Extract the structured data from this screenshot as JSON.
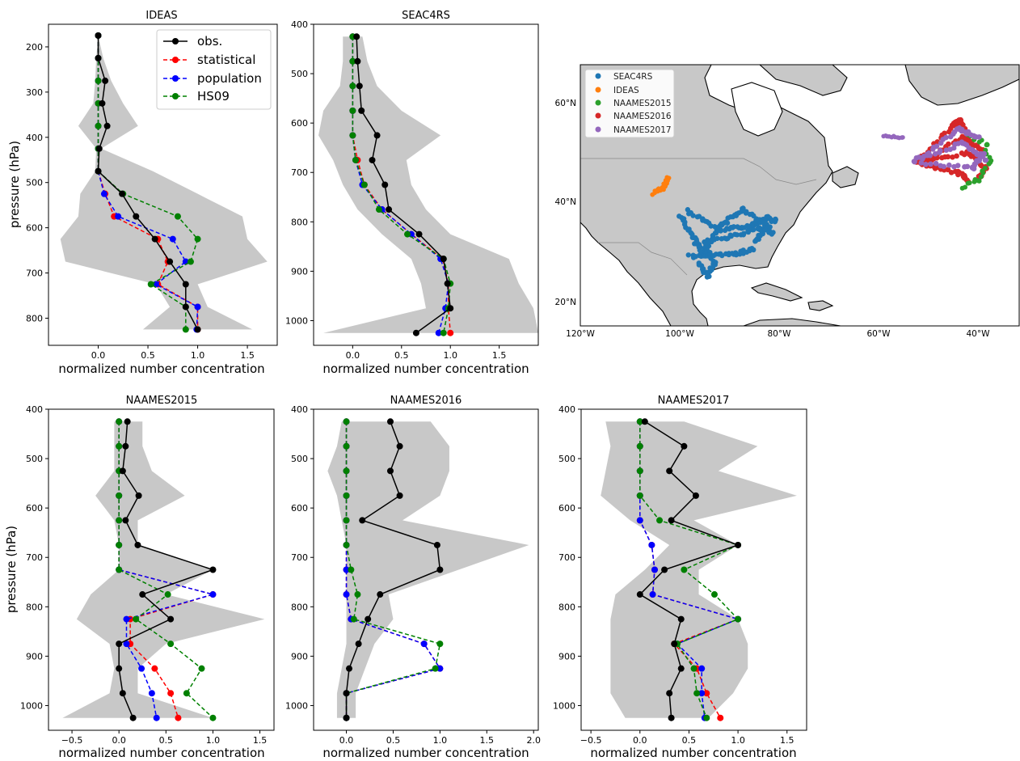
{
  "chart_data": [
    {
      "type": "line",
      "title": "IDEAS",
      "xlabel": "normalized number concentration",
      "ylabel": "pressure (hPa)",
      "xlim": [
        -0.5,
        1.8
      ],
      "ylim": [
        860,
        150
      ],
      "xticks": [
        "0.0",
        "0.5",
        "1.0",
        "1.5"
      ],
      "yticks": [
        "200",
        "300",
        "400",
        "500",
        "600",
        "700",
        "800"
      ],
      "legend_position": "top-right",
      "y": [
        175,
        225,
        275,
        325,
        375,
        425,
        475,
        525,
        575,
        625,
        675,
        725,
        775,
        825
      ],
      "range_low": [
        0.0,
        -0.02,
        -0.03,
        -0.05,
        -0.2,
        -0.02,
        -0.03,
        -0.18,
        -0.2,
        -0.38,
        -0.33,
        0.58,
        0.72,
        0.45
      ],
      "range_high": [
        0.0,
        0.05,
        0.13,
        0.25,
        0.4,
        0.03,
        0.55,
        1.0,
        1.45,
        1.5,
        1.7,
        1.0,
        1.1,
        1.55
      ],
      "series": [
        {
          "name": "obs.",
          "color": "#000000",
          "values": [
            0.0,
            0.0,
            0.07,
            0.04,
            0.09,
            0.01,
            0.0,
            0.24,
            0.38,
            0.57,
            0.72,
            0.88,
            0.88,
            1.0
          ]
        },
        {
          "name": "statistical",
          "color": "#ff0000",
          "values": [
            0.0,
            0.0,
            0.0,
            0.0,
            0.0,
            0.0,
            0.0,
            0.07,
            0.16,
            0.6,
            0.7,
            0.6,
            1.0,
            1.0
          ]
        },
        {
          "name": "population",
          "color": "#0000ff",
          "values": [
            0.0,
            0.0,
            0.0,
            0.0,
            0.0,
            0.0,
            0.0,
            0.06,
            0.2,
            0.75,
            0.88,
            0.58,
            1.0,
            0.99
          ]
        },
        {
          "name": "HS09",
          "color": "#008000",
          "values": [
            0.0,
            0.0,
            0.0,
            0.0,
            0.0,
            0.0,
            0.0,
            0.25,
            0.8,
            1.0,
            0.93,
            0.53,
            0.88,
            0.88
          ]
        }
      ]
    },
    {
      "type": "line",
      "title": "SEAC4RS",
      "xlabel": "normalized number concentration",
      "ylabel": "",
      "xlim": [
        -0.4,
        1.9
      ],
      "ylim": [
        1050,
        400
      ],
      "xticks": [
        "0.0",
        "0.5",
        "1.0",
        "1.5"
      ],
      "yticks": [
        "400",
        "500",
        "600",
        "700",
        "800",
        "900",
        "1000"
      ],
      "y": [
        425,
        475,
        525,
        575,
        625,
        675,
        725,
        775,
        825,
        875,
        925,
        975,
        1025
      ],
      "range_low": [
        -0.1,
        -0.1,
        -0.13,
        -0.3,
        -0.35,
        -0.2,
        -0.1,
        0.05,
        0.3,
        0.6,
        0.7,
        0.75,
        -0.3
      ],
      "range_high": [
        0.1,
        0.15,
        0.25,
        0.5,
        0.9,
        0.55,
        0.6,
        0.75,
        1.0,
        1.6,
        1.7,
        1.85,
        1.9
      ],
      "series": [
        {
          "name": "obs.",
          "color": "#000000",
          "values": [
            0.04,
            0.05,
            0.07,
            0.09,
            0.25,
            0.2,
            0.33,
            0.37,
            0.68,
            0.93,
            0.97,
            1.0,
            0.65
          ]
        },
        {
          "name": "statistical",
          "color": "#ff0000",
          "values": [
            0.0,
            0.0,
            0.0,
            0.0,
            0.0,
            0.05,
            0.12,
            0.3,
            0.6,
            0.92,
            0.98,
            0.98,
            1.0
          ]
        },
        {
          "name": "population",
          "color": "#0000ff",
          "values": [
            0.0,
            0.0,
            0.0,
            0.0,
            0.0,
            0.03,
            0.1,
            0.3,
            0.6,
            0.9,
            0.98,
            0.95,
            0.88
          ]
        },
        {
          "name": "HS09",
          "color": "#008000",
          "values": [
            0.0,
            0.0,
            0.0,
            0.0,
            0.0,
            0.03,
            0.12,
            0.27,
            0.56,
            0.93,
            1.0,
            0.98,
            0.93
          ]
        }
      ]
    },
    {
      "type": "scatter",
      "xticks": [
        "120°W",
        "100°W",
        "80°W",
        "60°W",
        "40°W"
      ],
      "yticks": [
        "20°N",
        "40°N",
        "60°N"
      ],
      "legend_position": "top-left",
      "series": [
        {
          "name": "SEAC4RS",
          "color": "#1f77b4"
        },
        {
          "name": "IDEAS",
          "color": "#ff7f0e"
        },
        {
          "name": "NAAMES2015",
          "color": "#2ca02c"
        },
        {
          "name": "NAAMES2016",
          "color": "#d62728"
        },
        {
          "name": "NAAMES2017",
          "color": "#9467bd"
        }
      ]
    },
    {
      "type": "line",
      "title": "NAAMES2015",
      "xlabel": "normalized number concentration",
      "ylabel": "pressure (hPa)",
      "xlim": [
        -0.75,
        1.65
      ],
      "ylim": [
        1050,
        400
      ],
      "xticks": [
        "−0.5",
        "0.0",
        "0.5",
        "1.0",
        "1.5"
      ],
      "yticks": [
        "400",
        "500",
        "600",
        "700",
        "800",
        "900",
        "1000"
      ],
      "y": [
        425,
        475,
        525,
        575,
        625,
        675,
        725,
        775,
        825,
        875,
        925,
        975,
        1025
      ],
      "range_low": [
        -0.05,
        -0.05,
        -0.05,
        -0.25,
        -0.05,
        0.0,
        0.0,
        -0.3,
        -0.45,
        -0.1,
        -0.05,
        -0.1,
        -0.6
      ],
      "range_high": [
        0.25,
        0.25,
        0.35,
        0.7,
        0.2,
        0.2,
        1.0,
        0.5,
        1.55,
        0.5,
        0.2,
        0.2,
        1.0
      ],
      "series": [
        {
          "name": "obs.",
          "color": "#000000",
          "values": [
            0.09,
            0.07,
            0.04,
            0.21,
            0.07,
            0.2,
            1.0,
            0.25,
            0.55,
            0.0,
            0.0,
            0.04,
            0.15
          ]
        },
        {
          "name": "statistical",
          "color": "#ff0000",
          "values": [
            0.0,
            0.0,
            0.0,
            0.0,
            0.0,
            0.0,
            0.0,
            1.0,
            0.12,
            0.12,
            0.38,
            0.55,
            0.63
          ]
        },
        {
          "name": "population",
          "color": "#0000ff",
          "values": [
            0.0,
            0.0,
            0.0,
            0.0,
            0.0,
            0.0,
            0.0,
            1.0,
            0.08,
            0.08,
            0.24,
            0.35,
            0.4
          ]
        },
        {
          "name": "HS09",
          "color": "#008000",
          "values": [
            0.0,
            0.0,
            0.0,
            0.0,
            0.0,
            0.0,
            0.0,
            0.52,
            0.18,
            0.55,
            0.88,
            0.72,
            1.0
          ]
        }
      ]
    },
    {
      "type": "line",
      "title": "NAAMES2016",
      "xlabel": "normalized number concentration",
      "ylabel": "",
      "xlim": [
        -0.35,
        2.05
      ],
      "ylim": [
        1050,
        400
      ],
      "xticks": [
        "0.0",
        "0.5",
        "1.0",
        "1.5",
        "2.0"
      ],
      "yticks": [
        "400",
        "500",
        "600",
        "700",
        "800",
        "900",
        "1000"
      ],
      "y": [
        425,
        475,
        525,
        575,
        625,
        675,
        725,
        775,
        825,
        875,
        925,
        975,
        1025
      ],
      "range_low": [
        -0.05,
        -0.1,
        -0.2,
        -0.1,
        -0.05,
        0.0,
        0.0,
        0.0,
        0.0,
        0.0,
        -0.05,
        -0.1,
        -0.1
      ],
      "range_high": [
        0.9,
        1.1,
        1.1,
        1.0,
        0.6,
        1.95,
        1.2,
        0.45,
        0.5,
        0.3,
        0.2,
        0.1,
        0.1
      ],
      "series": [
        {
          "name": "obs.",
          "color": "#000000",
          "values": [
            0.47,
            0.57,
            0.47,
            0.57,
            0.17,
            0.97,
            1.0,
            0.36,
            0.23,
            0.13,
            0.03,
            0.0,
            0.0
          ]
        },
        {
          "name": "statistical",
          "color": "#ff0000",
          "values": [
            0.0,
            0.0,
            0.0,
            0.0,
            0.0,
            0.0,
            0.0,
            0.0,
            0.05,
            0.83,
            1.0,
            0.0,
            0.0
          ]
        },
        {
          "name": "population",
          "color": "#0000ff",
          "values": [
            0.0,
            0.0,
            0.0,
            0.0,
            0.0,
            0.0,
            0.0,
            0.0,
            0.05,
            0.83,
            1.0,
            0.0,
            0.0
          ]
        },
        {
          "name": "HS09",
          "color": "#008000",
          "values": [
            0.0,
            0.0,
            0.0,
            0.0,
            0.0,
            0.0,
            0.05,
            0.12,
            0.08,
            1.0,
            0.95,
            0.0,
            0.0
          ]
        }
      ]
    },
    {
      "type": "line",
      "title": "NAAMES2017",
      "xlabel": "normalized number concentration",
      "ylabel": "",
      "xlim": [
        -0.6,
        1.7
      ],
      "ylim": [
        1050,
        400
      ],
      "xticks": [
        "−0.5",
        "0.0",
        "0.5",
        "1.0",
        "1.5"
      ],
      "yticks": [
        "400",
        "500",
        "600",
        "700",
        "800",
        "900",
        "1000"
      ],
      "y": [
        425,
        475,
        525,
        575,
        625,
        675,
        725,
        775,
        825,
        875,
        925,
        975,
        1025
      ],
      "range_low": [
        -0.35,
        -0.3,
        -0.35,
        -0.4,
        -0.1,
        0.3,
        0.05,
        -0.25,
        -0.3,
        -0.3,
        -0.3,
        -0.3,
        -0.15
      ],
      "range_high": [
        0.45,
        1.2,
        0.8,
        1.6,
        0.55,
        1.0,
        0.6,
        0.6,
        1.0,
        1.1,
        1.1,
        0.95,
        0.7
      ],
      "series": [
        {
          "name": "obs.",
          "color": "#000000",
          "values": [
            0.05,
            0.45,
            0.3,
            0.57,
            0.32,
            1.0,
            0.25,
            0.0,
            0.42,
            0.35,
            0.42,
            0.3,
            0.32
          ]
        },
        {
          "name": "statistical",
          "color": "#ff0000",
          "values": [
            0.0,
            0.0,
            0.0,
            0.0,
            0.0,
            0.12,
            0.15,
            0.13,
            1.0,
            0.35,
            0.58,
            0.68,
            0.82
          ]
        },
        {
          "name": "population",
          "color": "#0000ff",
          "values": [
            0.0,
            0.0,
            0.0,
            0.0,
            0.0,
            0.12,
            0.15,
            0.13,
            1.0,
            0.38,
            0.63,
            0.63,
            0.66
          ]
        },
        {
          "name": "HS09",
          "color": "#008000",
          "values": [
            0.0,
            0.0,
            0.0,
            0.0,
            0.2,
            1.0,
            0.45,
            0.76,
            1.0,
            0.38,
            0.55,
            0.58,
            0.68
          ]
        }
      ]
    }
  ]
}
